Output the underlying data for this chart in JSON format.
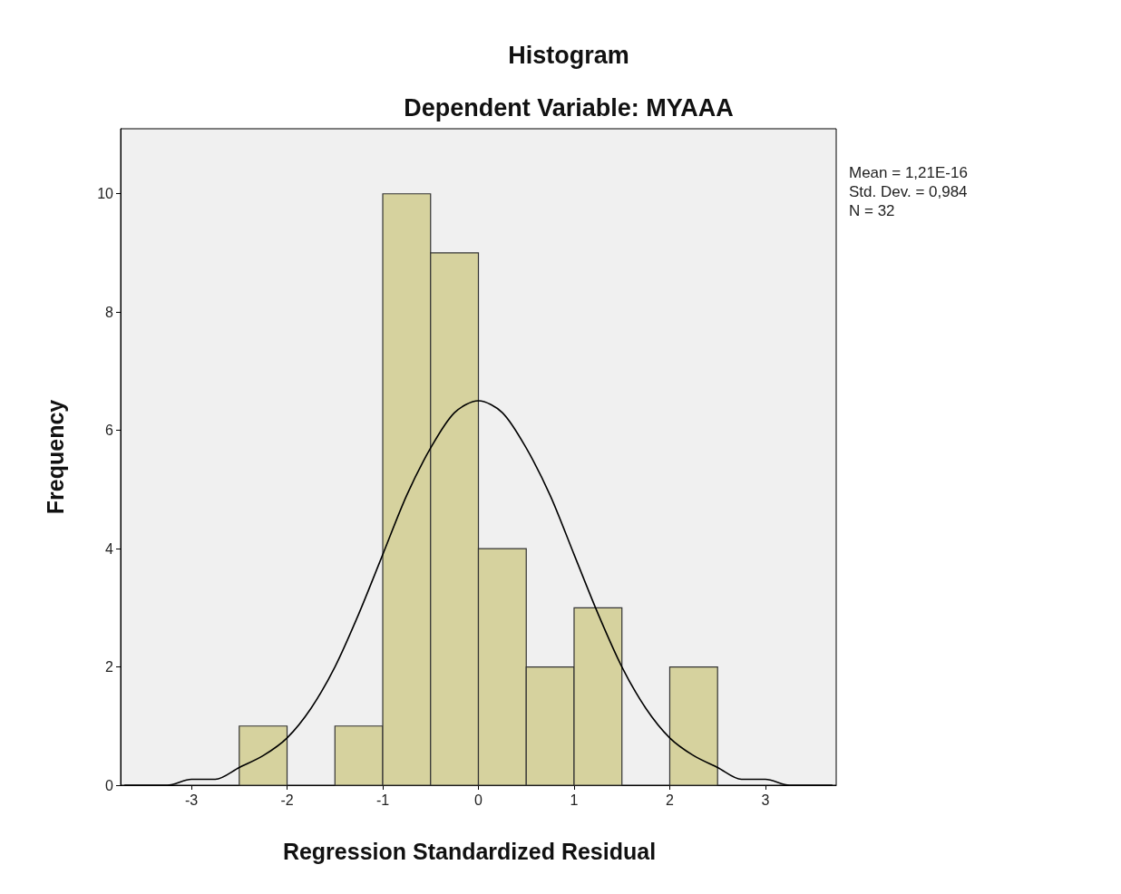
{
  "chart_data": {
    "type": "histogram",
    "title": "Histogram",
    "subtitle": "Dependent Variable: MYAAA",
    "xlabel": "Regression Standardized Residual",
    "ylabel": "Frequency",
    "annotations": [
      "Mean = 1,21E-16",
      "Std. Dev. = 0,984",
      "N = 32"
    ],
    "series": [
      {
        "color": "#d6d29e",
        "bins": [
          -2.5,
          -2,
          -1.5,
          -1,
          -0.5,
          0,
          0.5,
          1,
          1.5,
          2,
          2.5
        ],
        "values": [
          1,
          0,
          1,
          10,
          9,
          4,
          2,
          3,
          0,
          2
        ]
      },
      {
        "type": "line",
        "color": "#000000",
        "x": [
          -3.7,
          -3.25,
          -3,
          -2.75,
          -2.5,
          -2.25,
          -2,
          -1.75,
          -1.5,
          -1.25,
          -1,
          -0.75,
          -0.5,
          -0.25,
          0,
          0.25,
          0.5,
          0.75,
          1,
          1.25,
          1.5,
          1.75,
          2,
          2.25,
          2.5,
          2.75,
          3,
          3.25,
          3.7
        ],
        "values": [
          0,
          0,
          0.1,
          0.1,
          0.3,
          0.5,
          0.8,
          1.3,
          2.0,
          2.9,
          3.9,
          4.9,
          5.7,
          6.3,
          6.5,
          6.3,
          5.7,
          4.9,
          3.9,
          2.9,
          2.0,
          1.3,
          0.8,
          0.5,
          0.3,
          0.1,
          0.1,
          0,
          0
        ]
      }
    ],
    "marker": "none",
    "line_style": "solid",
    "xlim": [
      -3.74,
      3.74
    ],
    "xticks": [
      -3,
      -2,
      -1,
      0,
      1,
      2,
      3
    ],
    "ylim": [
      0,
      11.1
    ],
    "yticks": [
      0,
      2,
      4,
      6,
      8,
      10
    ]
  }
}
